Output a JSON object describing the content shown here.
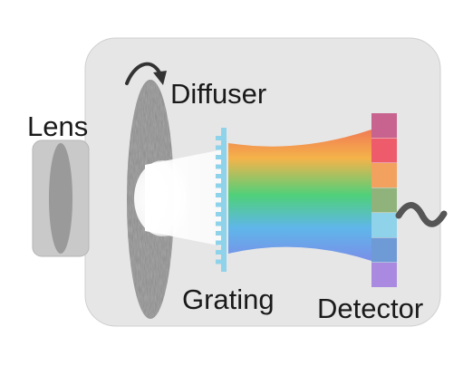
{
  "labels": {
    "lens": "Lens",
    "diffuser": "Diffuser",
    "grating": "Grating",
    "detector": "Detector"
  },
  "colors": {
    "housing": "#e6e6e6",
    "housing_edge": "#c8c8c8",
    "lens_body": "#c9c9c9",
    "lens_glass": "#9a9a9a",
    "diffuser": "#555555",
    "grating": "#8fd3ea",
    "arrow": "#333333",
    "signal_wave": "#555555",
    "detector_pixels": [
      "#c8628f",
      "#ee5b6a",
      "#f2a25e",
      "#8fb37a",
      "#8fd3ea",
      "#6e9ad6",
      "#a98ae0"
    ],
    "spectrum": [
      "#f07a55",
      "#f5b34a",
      "#4fd07a",
      "#5fb6ea",
      "#7a8fe8"
    ]
  }
}
